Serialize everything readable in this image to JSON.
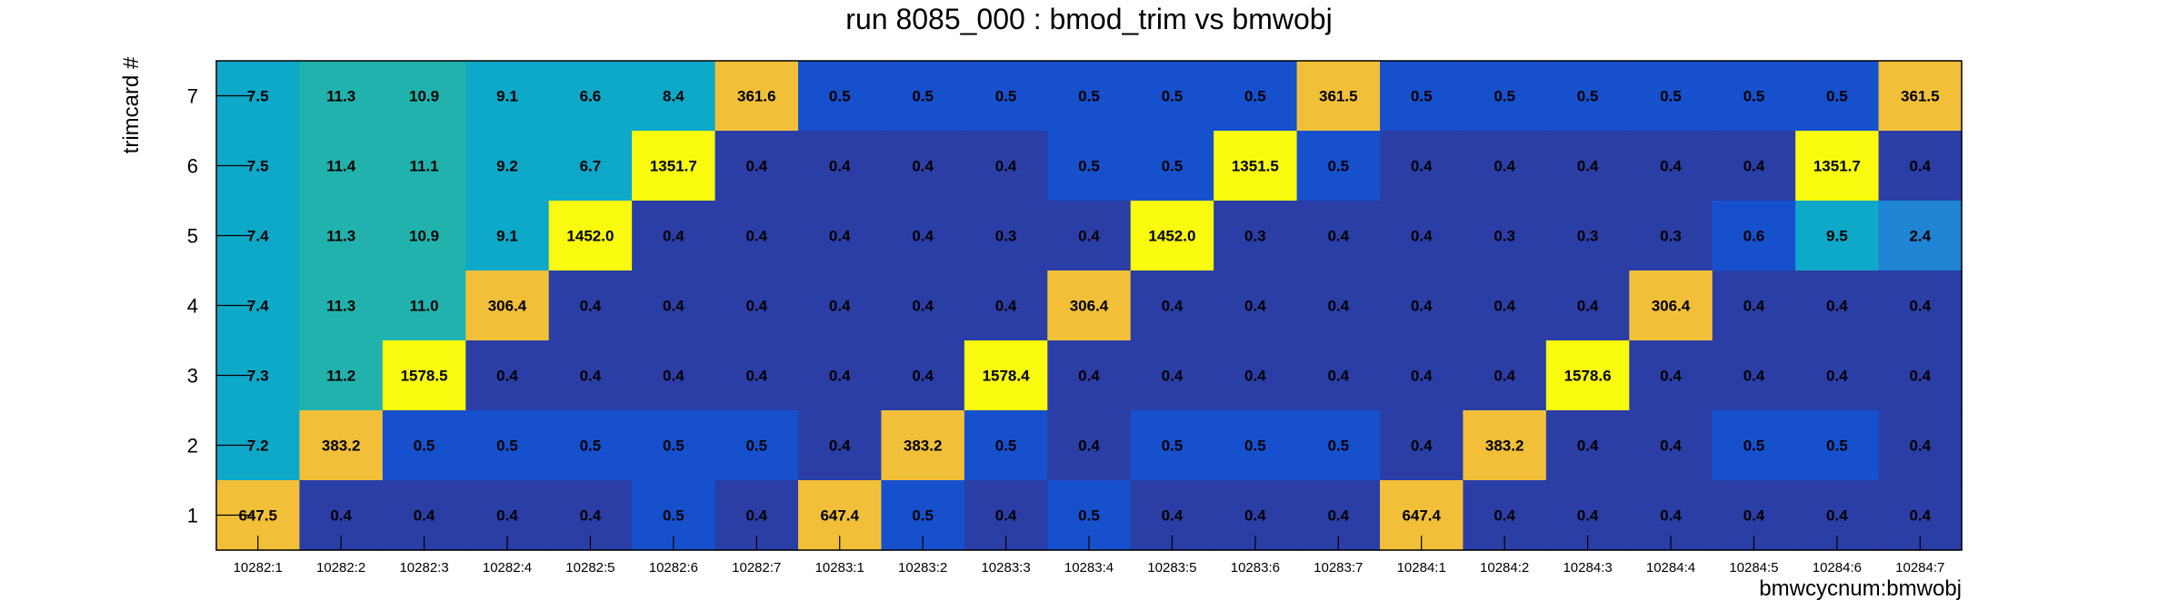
{
  "chart_data": {
    "type": "heatmap",
    "title": "run 8085_000 : bmod_trim vs bmwobj",
    "xlabel": "bmwcycnum:bmwobj",
    "ylabel": "trimcard #",
    "x_categories": [
      "10282:1",
      "10282:2",
      "10282:3",
      "10282:4",
      "10282:5",
      "10282:6",
      "10282:7",
      "10283:1",
      "10283:2",
      "10283:3",
      "10283:4",
      "10283:5",
      "10283:6",
      "10283:7",
      "10284:1",
      "10284:2",
      "10284:3",
      "10284:4",
      "10284:5",
      "10284:6",
      "10284:7"
    ],
    "y_categories": [
      "1",
      "2",
      "3",
      "4",
      "5",
      "6",
      "7"
    ],
    "rows": [
      {
        "y": "7",
        "values": [
          "7.5",
          "11.3",
          "10.9",
          "9.1",
          "6.6",
          "8.4",
          "361.6",
          "0.5",
          "0.5",
          "0.5",
          "0.5",
          "0.5",
          "0.5",
          "361.5",
          "0.5",
          "0.5",
          "0.5",
          "0.5",
          "0.5",
          "0.5",
          "361.5"
        ]
      },
      {
        "y": "6",
        "values": [
          "7.5",
          "11.4",
          "11.1",
          "9.2",
          "6.7",
          "1351.7",
          "0.4",
          "0.4",
          "0.4",
          "0.4",
          "0.5",
          "0.5",
          "1351.5",
          "0.5",
          "0.4",
          "0.4",
          "0.4",
          "0.4",
          "0.4",
          "1351.7",
          "0.4"
        ]
      },
      {
        "y": "5",
        "values": [
          "7.4",
          "11.3",
          "10.9",
          "9.1",
          "1452.0",
          "0.4",
          "0.4",
          "0.4",
          "0.4",
          "0.3",
          "0.4",
          "1452.0",
          "0.3",
          "0.4",
          "0.4",
          "0.3",
          "0.3",
          "0.3",
          "0.6",
          "9.5",
          "2.4"
        ]
      },
      {
        "y": "4",
        "values": [
          "7.4",
          "11.3",
          "11.0",
          "306.4",
          "0.4",
          "0.4",
          "0.4",
          "0.4",
          "0.4",
          "0.4",
          "306.4",
          "0.4",
          "0.4",
          "0.4",
          "0.4",
          "0.4",
          "0.4",
          "306.4",
          "0.4",
          "0.4",
          "0.4"
        ]
      },
      {
        "y": "3",
        "values": [
          "7.3",
          "11.2",
          "1578.5",
          "0.4",
          "0.4",
          "0.4",
          "0.4",
          "0.4",
          "0.4",
          "1578.4",
          "0.4",
          "0.4",
          "0.4",
          "0.4",
          "0.4",
          "0.4",
          "1578.6",
          "0.4",
          "0.4",
          "0.4",
          "0.4"
        ]
      },
      {
        "y": "2",
        "values": [
          "7.2",
          "383.2",
          "0.5",
          "0.5",
          "0.5",
          "0.5",
          "0.5",
          "0.4",
          "383.2",
          "0.5",
          "0.4",
          "0.5",
          "0.5",
          "0.5",
          "0.4",
          "383.2",
          "0.4",
          "0.4",
          "0.5",
          "0.5",
          "0.4"
        ]
      },
      {
        "y": "1",
        "values": [
          "647.5",
          "0.4",
          "0.4",
          "0.4",
          "0.4",
          "0.5",
          "0.4",
          "647.4",
          "0.5",
          "0.4",
          "0.5",
          "0.4",
          "0.4",
          "0.4",
          "647.4",
          "0.4",
          "0.4",
          "0.4",
          "0.4",
          "0.4",
          "0.4"
        ]
      }
    ],
    "colors": {
      "dark_blue": "#2a3ea6",
      "royal_blue": "#1750cc",
      "mid_blue": "#1f84d4",
      "cyan": "#0ea8c8",
      "teal": "#21b2ad",
      "orange": "#f2c038",
      "yellow": "#f9fb0e",
      "frame": "#000000"
    },
    "grid": false,
    "legend": "none"
  }
}
